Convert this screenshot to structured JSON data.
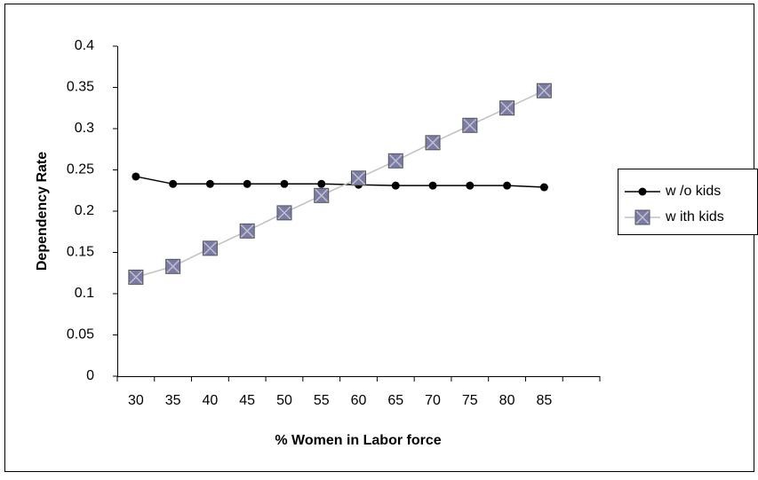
{
  "chart_data": {
    "type": "line",
    "x_label": "% Women in Labor force",
    "y_label": "Dependency Rate",
    "categories": [
      "30",
      "35",
      "40",
      "45",
      "50",
      "55",
      "60",
      "65",
      "70",
      "75",
      "80",
      "85",
      null
    ],
    "series": [
      {
        "name": "w /o kids",
        "color": "#000000",
        "marker": "circle",
        "values": [
          0.242,
          0.233,
          0.233,
          0.233,
          0.233,
          0.233,
          0.232,
          0.231,
          0.231,
          0.231,
          0.231,
          0.229,
          null
        ]
      },
      {
        "name": "w ith kids",
        "color": "#c0c0c0",
        "marker": "square-x",
        "values": [
          0.12,
          0.133,
          0.155,
          0.176,
          0.198,
          0.219,
          0.24,
          0.261,
          0.283,
          0.304,
          0.325,
          0.346,
          null
        ]
      }
    ],
    "ylim": [
      0,
      0.4
    ],
    "yticks": [
      0,
      0.05,
      0.1,
      0.15,
      0.2,
      0.25,
      0.3,
      0.35,
      0.4
    ],
    "grid": false
  }
}
